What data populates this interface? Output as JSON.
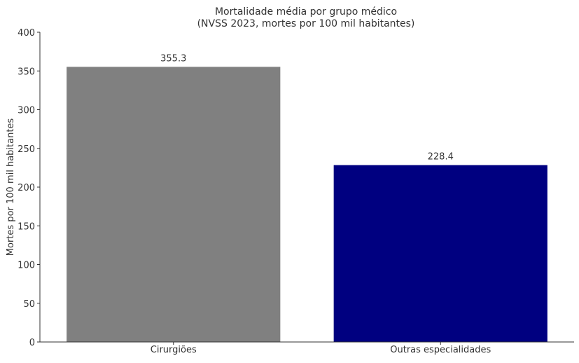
{
  "chart_data": {
    "type": "bar",
    "title": "Mortalidade média por grupo médico",
    "subtitle": "(NVSS 2023, mortes por 100 mil habitantes)",
    "xlabel": "",
    "ylabel": "Mortes por 100 mil habitantes",
    "categories": [
      "Cirurgiões",
      "Outras especialidades"
    ],
    "values": [
      355.3,
      228.4
    ],
    "data_labels": [
      "355.3",
      "228.4"
    ],
    "colors": [
      "#808080",
      "#000080"
    ],
    "ylim": [
      0,
      400
    ],
    "yticks": [
      0,
      50,
      100,
      150,
      200,
      250,
      300,
      350,
      400
    ],
    "grid": false,
    "legend": "none"
  }
}
